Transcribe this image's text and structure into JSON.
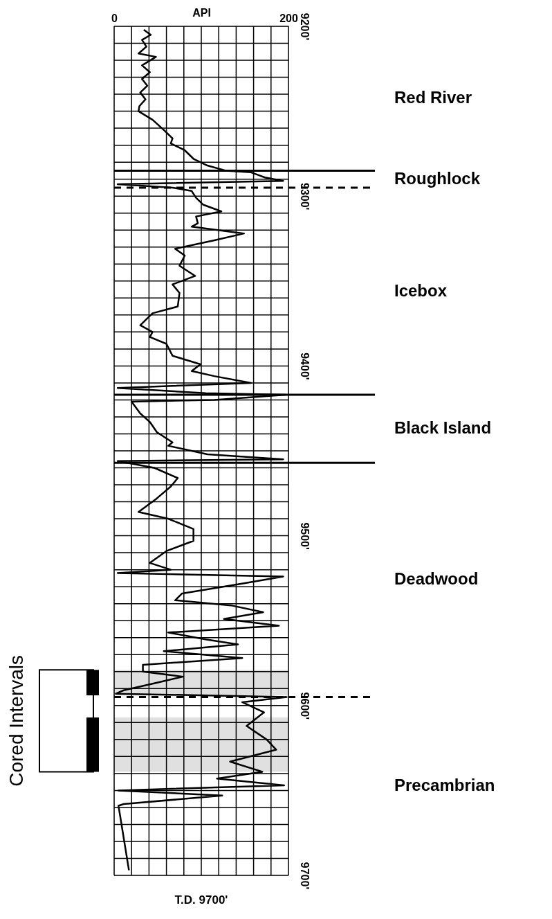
{
  "chart_data": {
    "type": "line",
    "xlabel": "API",
    "series": [
      {
        "color": "#000000",
        "x": [
          34,
          42,
          32,
          37,
          28,
          48,
          32,
          41,
          32,
          38,
          30,
          36,
          29,
          28,
          44,
          57,
          67,
          65,
          81,
          91,
          107,
          128,
          157,
          173,
          194,
          4,
          67,
          89,
          94,
          102,
          123,
          94,
          96,
          89,
          149,
          115,
          70,
          81,
          75,
          93,
          67,
          75,
          73,
          44,
          30,
          44,
          41,
          60,
          67,
          99,
          89,
          115,
          157,
          4,
          105,
          197,
          115,
          20,
          30,
          41,
          49,
          67,
          62,
          107,
          194,
          4,
          46,
          73,
          65,
          49,
          28,
          62,
          91,
          91,
          60,
          41,
          65,
          4,
          194,
          149,
          78,
          70,
          134,
          171,
          126,
          189,
          62,
          105,
          142,
          57,
          147,
          33,
          33,
          79,
          45,
          11,
          2,
          198,
          147,
          172,
          152,
          175,
          186,
          133,
          170,
          118,
          195,
          5,
          124,
          11,
          5,
          17
        ],
        "values": [
          9202,
          9205,
          9208,
          9212,
          9216,
          9218,
          9223,
          9227,
          9231,
          9235,
          9239,
          9243,
          9247,
          9250,
          9255,
          9261,
          9266,
          9269,
          9273,
          9278,
          9282,
          9285,
          9286,
          9289,
          9291,
          9293,
          9295,
          9297,
          9301,
          9305,
          9309,
          9312,
          9316,
          9318,
          9322,
          9326,
          9331,
          9335,
          9341,
          9347,
          9352,
          9357,
          9365,
          9369,
          9376,
          9380,
          9383,
          9387,
          9394,
          9399,
          9403,
          9406,
          9410,
          9413,
          9416,
          9417,
          9420,
          9421,
          9428,
          9433,
          9439,
          9445,
          9447,
          9452,
          9455,
          9456,
          9460,
          9466,
          9471,
          9478,
          9486,
          9490,
          9496,
          9503,
          9509,
          9516,
          9520,
          9522,
          9524,
          9528,
          9534,
          9538,
          9541,
          9545,
          9549,
          9553,
          9557,
          9561,
          9564,
          9568,
          9572,
          9576,
          9580,
          9583,
          9587,
          9591,
          9593,
          9595,
          9598,
          9604,
          9612,
          9620,
          9626,
          9633,
          9639,
          9643,
          9647,
          9650,
          9653,
          9658,
          9659,
          9697
        ]
      }
    ],
    "xlim": [
      0,
      200
    ],
    "xticks": [
      0,
      {
        "value": 20,
        "label": null
      },
      {
        "value": 40,
        "label": null
      },
      {
        "value": 60,
        "label": null
      },
      {
        "value": 80,
        "label": null
      },
      {
        "value": 100,
        "label": null
      },
      {
        "value": 120,
        "label": null
      },
      {
        "value": 140,
        "label": null
      },
      {
        "value": 160,
        "label": null
      },
      {
        "value": 180,
        "label": null
      },
      200
    ],
    "ylim": [
      9700,
      9200
    ],
    "yticks": [
      {
        "value": 9200,
        "label": "9200'"
      },
      {
        "value": 9210,
        "label": null
      },
      {
        "value": 9220,
        "label": null
      },
      {
        "value": 9230,
        "label": null
      },
      {
        "value": 9240,
        "label": null
      },
      {
        "value": 9250,
        "label": null
      },
      {
        "value": 9260,
        "label": null
      },
      {
        "value": 9270,
        "label": null
      },
      {
        "value": 9280,
        "label": null
      },
      {
        "value": 9290,
        "label": null
      },
      {
        "value": 9300,
        "label": "9300'"
      },
      {
        "value": 9310,
        "label": null
      },
      {
        "value": 9320,
        "label": null
      },
      {
        "value": 9330,
        "label": null
      },
      {
        "value": 9340,
        "label": null
      },
      {
        "value": 9350,
        "label": null
      },
      {
        "value": 9360,
        "label": null
      },
      {
        "value": 9370,
        "label": null
      },
      {
        "value": 9380,
        "label": null
      },
      {
        "value": 9390,
        "label": null
      },
      {
        "value": 9400,
        "label": "9400'"
      },
      {
        "value": 9410,
        "label": null
      },
      {
        "value": 9420,
        "label": null
      },
      {
        "value": 9430,
        "label": null
      },
      {
        "value": 9440,
        "label": null
      },
      {
        "value": 9450,
        "label": null
      },
      {
        "value": 9460,
        "label": null
      },
      {
        "value": 9470,
        "label": null
      },
      {
        "value": 9480,
        "label": null
      },
      {
        "value": 9490,
        "label": null
      },
      {
        "value": 9500,
        "label": "9500'"
      },
      {
        "value": 9510,
        "label": null
      },
      {
        "value": 9520,
        "label": null
      },
      {
        "value": 9530,
        "label": null
      },
      {
        "value": 9540,
        "label": null
      },
      {
        "value": 9550,
        "label": null
      },
      {
        "value": 9560,
        "label": null
      },
      {
        "value": 9570,
        "label": null
      },
      {
        "value": 9580,
        "label": null
      },
      {
        "value": 9590,
        "label": null
      },
      {
        "value": 9600,
        "label": "9600'"
      },
      {
        "value": 9610,
        "label": null
      },
      {
        "value": 9620,
        "label": null
      },
      {
        "value": 9630,
        "label": null
      },
      {
        "value": 9640,
        "label": null
      },
      {
        "value": 9650,
        "label": null
      },
      {
        "value": 9660,
        "label": null
      },
      {
        "value": 9670,
        "label": null
      },
      {
        "value": 9680,
        "label": null
      },
      {
        "value": 9690,
        "label": null
      },
      {
        "value": 9700,
        "label": "9700'"
      }
    ],
    "grid": true,
    "line_style": "solid",
    "ref_lines": [
      {
        "axis": "y",
        "value": 9285,
        "color": "#000000",
        "line_style": "solid"
      },
      {
        "axis": "y",
        "value": 9295,
        "color": "#000000",
        "line_style": "dashed"
      },
      {
        "axis": "y",
        "value": 9417,
        "color": "#000000",
        "line_style": "solid"
      },
      {
        "axis": "y",
        "value": 9457,
        "color": "#000000",
        "line_style": "solid"
      },
      {
        "axis": "y",
        "value": 9595,
        "color": "#000000",
        "line_style": "dashed"
      }
    ],
    "bands": [
      {
        "axis": "y",
        "from": 9579,
        "to": 9594,
        "color": "#000000"
      },
      {
        "axis": "y",
        "from": 9607,
        "to": 9639,
        "color": "#000000"
      }
    ],
    "annotations": [
      "Red River",
      "Roughlock",
      "Icebox",
      "Black Island",
      "Deadwood",
      "Precambrian",
      "Cored Intervals",
      "T.D. 9700'"
    ]
  }
}
